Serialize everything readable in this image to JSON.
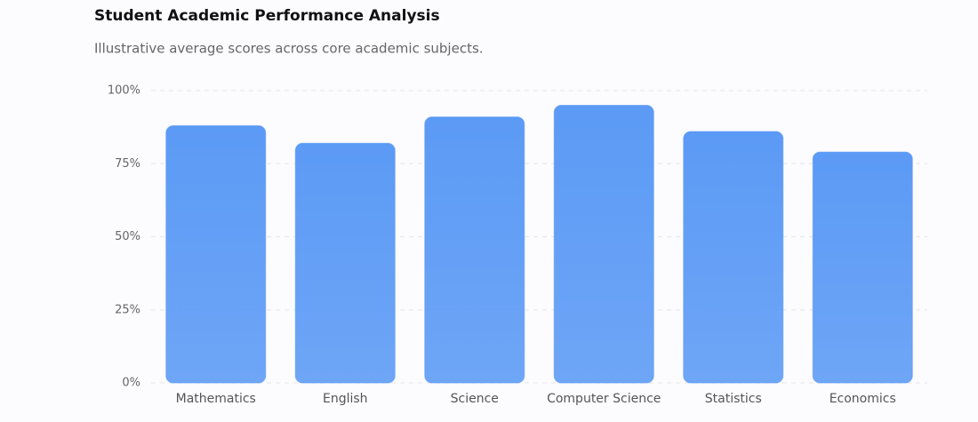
{
  "chart_data": {
    "type": "bar",
    "title": "Student Academic Performance Analysis",
    "subtitle": "Illustrative average scores across core academic subjects.",
    "categories": [
      "Mathematics",
      "English",
      "Science",
      "Computer Science",
      "Statistics",
      "Economics"
    ],
    "values": [
      88,
      82,
      91,
      95,
      86,
      79
    ],
    "color": "#5b9af5",
    "ylim": [
      0,
      100
    ],
    "yticks": [
      {
        "value": 0,
        "label": "0%"
      },
      {
        "value": 25,
        "label": "25%"
      },
      {
        "value": 50,
        "label": "50%"
      },
      {
        "value": 75,
        "label": "75%"
      },
      {
        "value": 100,
        "label": "100%"
      }
    ],
    "grid": true
  }
}
